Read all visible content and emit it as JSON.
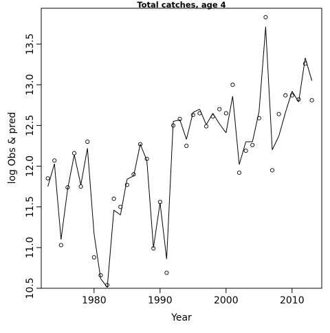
{
  "chart_data": {
    "type": "line",
    "title": "Total catches, age 4",
    "xlabel": "Year",
    "ylabel": "log Obs & pred",
    "xlim": [
      1972,
      2014.5
    ],
    "ylim": [
      10.5,
      13.94
    ],
    "xticks": [
      1980,
      1990,
      2000,
      2010
    ],
    "yticks": [
      10.5,
      11.0,
      11.5,
      12.0,
      12.5,
      13.0,
      13.5
    ],
    "xtick_labels": [
      "1980",
      "1990",
      "2000",
      "2010"
    ],
    "ytick_labels": [
      "10.5",
      "11.0",
      "11.5",
      "12.0",
      "12.5",
      "13.0",
      "13.5"
    ],
    "grid": false,
    "series": [
      {
        "style": "points",
        "marker": "open-circle",
        "x": [
          1973,
          1974,
          1975,
          1976,
          1977,
          1978,
          1979,
          1980,
          1981,
          1982,
          1983,
          1984,
          1985,
          1986,
          1987,
          1988,
          1989,
          1990,
          1991,
          1992,
          1993,
          1994,
          1995,
          1996,
          1997,
          1998,
          1999,
          2000,
          2001,
          2002,
          2003,
          2004,
          2005,
          2006,
          2007,
          2008,
          2009,
          2010,
          2011,
          2012,
          2013
        ],
        "values": [
          11.85,
          12.07,
          11.03,
          11.74,
          12.16,
          11.75,
          12.3,
          10.88,
          10.66,
          10.54,
          11.6,
          11.5,
          11.77,
          11.9,
          12.27,
          12.09,
          10.99,
          11.56,
          10.69,
          12.5,
          12.58,
          12.25,
          12.63,
          12.65,
          12.49,
          12.61,
          12.7,
          12.65,
          13.0,
          11.92,
          12.19,
          12.26,
          12.59,
          13.83,
          11.95,
          12.64,
          12.87,
          12.87,
          12.82,
          13.26,
          12.81
        ]
      },
      {
        "style": "line",
        "x": [
          1973,
          1974,
          1975,
          1976,
          1977,
          1978,
          1979,
          1980,
          1981,
          1982,
          1983,
          1984,
          1985,
          1986,
          1987,
          1988,
          1989,
          1990,
          1991,
          1992,
          1993,
          1994,
          1995,
          1996,
          1997,
          1998,
          1999,
          2000,
          2001,
          2002,
          2003,
          2004,
          2005,
          2006,
          2007,
          2008,
          2009,
          2010,
          2011,
          2012,
          2013
        ],
        "values": [
          11.75,
          12.03,
          11.1,
          11.72,
          12.14,
          11.77,
          12.22,
          11.17,
          10.62,
          10.51,
          11.46,
          11.4,
          11.84,
          11.88,
          12.27,
          12.07,
          11.0,
          11.55,
          10.86,
          12.55,
          12.57,
          12.33,
          12.66,
          12.7,
          12.51,
          12.65,
          12.52,
          12.41,
          12.86,
          12.02,
          12.3,
          12.3,
          12.67,
          13.71,
          12.2,
          12.37,
          12.66,
          12.92,
          12.79,
          13.33,
          13.05
        ]
      }
    ]
  }
}
